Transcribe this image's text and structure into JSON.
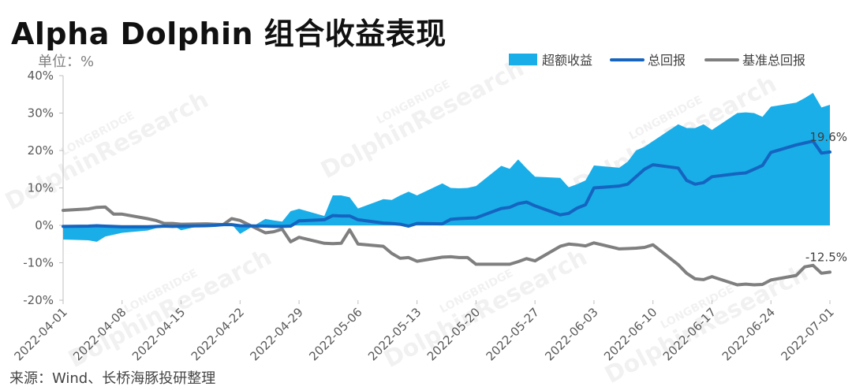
{
  "header": {
    "title": "Alpha Dolphin 组合收益表现",
    "unit": "单位：%"
  },
  "footer": {
    "source": "来源：Wind、长桥海豚投研整理"
  },
  "watermark": {
    "line1": "LONGBRIDGE",
    "line2": "DolphinResearch"
  },
  "colors": {
    "excess": "#1aaee8",
    "total": "#1565c0",
    "benchmark": "#7f7f7f"
  },
  "chart_data": {
    "type": "line",
    "legend_position": "top-right",
    "grid": false,
    "y_unit": "%",
    "ylim": [
      -20,
      40
    ],
    "y_ticks": [
      "40%",
      "30%",
      "20%",
      "10%",
      "0%",
      "-10%",
      "-20%"
    ],
    "x_tick_labels": [
      "2022-04-01",
      "2022-04-08",
      "2022-04-15",
      "2022-04-22",
      "2022-04-29",
      "2022-05-06",
      "2022-05-13",
      "2022-05-20",
      "2022-05-27",
      "2022-06-03",
      "2022-06-10",
      "2022-06-17",
      "2022-06-24",
      "2022-07-01"
    ],
    "x": [
      "2022-04-01",
      "2022-04-04",
      "2022-04-05",
      "2022-04-06",
      "2022-04-07",
      "2022-04-08",
      "2022-04-11",
      "2022-04-12",
      "2022-04-13",
      "2022-04-14",
      "2022-04-15",
      "2022-04-18",
      "2022-04-19",
      "2022-04-20",
      "2022-04-21",
      "2022-04-22",
      "2022-04-25",
      "2022-04-26",
      "2022-04-27",
      "2022-04-28",
      "2022-04-29",
      "2022-05-02",
      "2022-05-03",
      "2022-05-04",
      "2022-05-05",
      "2022-05-06",
      "2022-05-09",
      "2022-05-10",
      "2022-05-11",
      "2022-05-12",
      "2022-05-13",
      "2022-05-16",
      "2022-05-17",
      "2022-05-18",
      "2022-05-19",
      "2022-05-20",
      "2022-05-23",
      "2022-05-24",
      "2022-05-25",
      "2022-05-26",
      "2022-05-27",
      "2022-05-30",
      "2022-05-31",
      "2022-06-01",
      "2022-06-02",
      "2022-06-03",
      "2022-06-06",
      "2022-06-07",
      "2022-06-08",
      "2022-06-09",
      "2022-06-10",
      "2022-06-13",
      "2022-06-14",
      "2022-06-15",
      "2022-06-16",
      "2022-06-17",
      "2022-06-20",
      "2022-06-21",
      "2022-06-22",
      "2022-06-23",
      "2022-06-24",
      "2022-06-27",
      "2022-06-28",
      "2022-06-29",
      "2022-06-30",
      "2022-07-01"
    ],
    "series": [
      {
        "name": "超额收益",
        "style": "area",
        "values": [
          -3.8,
          -4.0,
          -4.4,
          -3.0,
          -2.5,
          -2.0,
          -1.4,
          -0.8,
          -0.6,
          0.0,
          -1.3,
          0.2,
          0.2,
          0.0,
          0.3,
          -2.3,
          1.7,
          1.3,
          1.0,
          3.8,
          4.4,
          2.5,
          8.0,
          8.0,
          7.5,
          4.5,
          7.0,
          6.8,
          8.0,
          9.0,
          8.0,
          11.2,
          10.0,
          9.9,
          10.0,
          10.5,
          15.9,
          15.1,
          17.6,
          15.2,
          13.0,
          12.7,
          10.2,
          11.0,
          12.0,
          16.0,
          15.4,
          17.0,
          20.0,
          21.0,
          22.5,
          27.0,
          26.0,
          26.0,
          27.0,
          25.5,
          30.0,
          30.2,
          30.0,
          29.0,
          31.7,
          32.8,
          34.0,
          35.4,
          31.5,
          32.2
        ]
      },
      {
        "name": "总回报",
        "style": "line",
        "values": [
          -0.3,
          -0.2,
          -0.1,
          -0.2,
          -0.3,
          -0.4,
          -0.4,
          -0.3,
          -0.2,
          -0.3,
          -0.2,
          -0.1,
          0.0,
          0.2,
          0.2,
          -0.1,
          -0.2,
          -0.3,
          -0.3,
          -0.2,
          1.2,
          1.5,
          2.6,
          2.5,
          2.5,
          1.5,
          0.6,
          0.5,
          0.3,
          -0.2,
          0.5,
          0.4,
          1.6,
          1.8,
          1.9,
          2.0,
          4.5,
          4.8,
          5.8,
          6.2,
          5.2,
          2.8,
          3.2,
          4.6,
          5.5,
          10.0,
          10.5,
          11.0,
          13.0,
          15.0,
          16.2,
          15.3,
          12.0,
          11.0,
          11.4,
          13.0,
          13.8,
          14.0,
          15.0,
          16.0,
          19.5,
          21.5,
          22.0,
          22.5,
          19.3,
          19.6
        ]
      },
      {
        "name": "基准总回报",
        "style": "line",
        "values": [
          4.0,
          4.4,
          4.8,
          4.9,
          3.0,
          3.0,
          1.8,
          1.3,
          0.5,
          0.5,
          0.3,
          0.4,
          0.3,
          0.2,
          1.8,
          1.3,
          -2.0,
          -1.7,
          -1.0,
          -4.4,
          -3.2,
          -4.8,
          -4.9,
          -4.8,
          -1.2,
          -5.0,
          -5.6,
          -7.5,
          -8.8,
          -8.6,
          -9.6,
          -8.5,
          -8.4,
          -8.6,
          -8.6,
          -10.4,
          -10.4,
          -10.4,
          -9.7,
          -8.9,
          -9.5,
          -5.6,
          -5.0,
          -5.2,
          -5.5,
          -4.7,
          -6.3,
          -6.2,
          -6.1,
          -5.9,
          -5.2,
          -10.5,
          -12.8,
          -14.3,
          -14.5,
          -13.7,
          -15.9,
          -15.7,
          -15.9,
          -15.8,
          -14.6,
          -13.4,
          -11.1,
          -10.7,
          -12.8,
          -12.5
        ]
      }
    ],
    "annotations": [
      {
        "series": "总回报",
        "text": "19.6%"
      },
      {
        "series": "基准总回报",
        "text": "-12.5%"
      }
    ]
  }
}
